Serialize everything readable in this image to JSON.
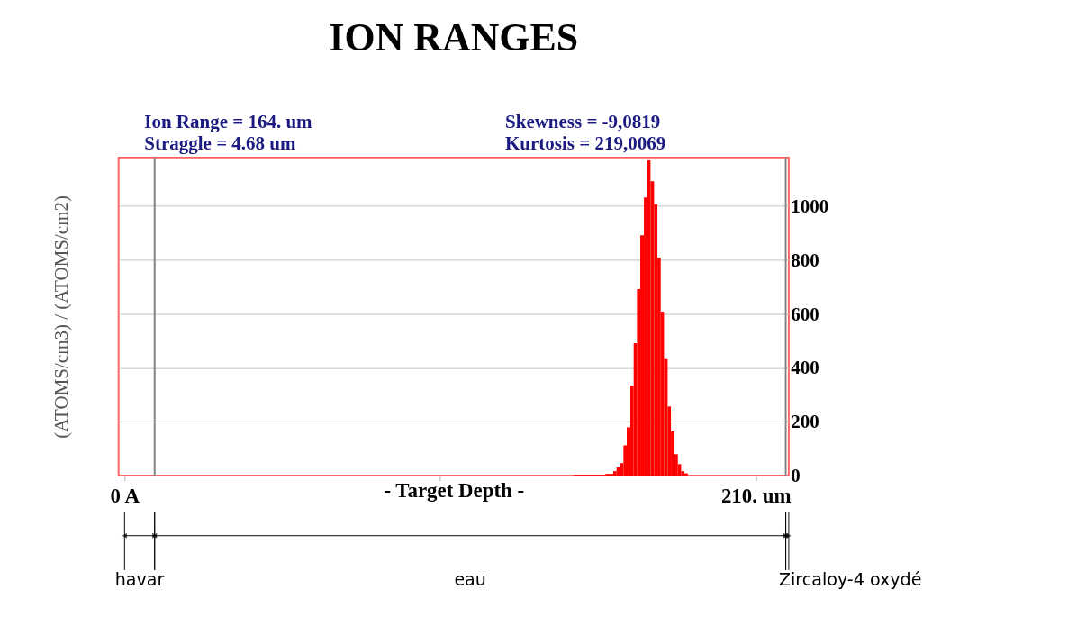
{
  "chart_data": {
    "type": "histogram",
    "title": "ION RANGES",
    "xlabel": "- Target Depth -",
    "ylabel": "(ATOMS/cm3) / (ATOMS/cm2)",
    "annotations": [
      "Ion Range    =  164. um",
      "Straggle      =  4.68 um",
      "Skewness     = -9,0819",
      "Kurtosis       = 219,0069",
      "havar",
      "eau",
      "Zircaloy-4 oxydé"
    ],
    "bins": [
      149.3,
      160.0,
      162.6,
      163.7,
      164.9,
      166.0,
      167.1,
      168.3,
      169.4,
      170.5,
      171.6,
      172.8,
      173.9,
      175.0,
      176.2,
      177.3,
      178.4,
      179.5,
      180.7,
      181.8,
      182.9,
      184.1,
      185.2,
      186.3,
      187.4
    ],
    "values": [
      2,
      6,
      16,
      30,
      46,
      112,
      179,
      334,
      491,
      692,
      891,
      1032,
      1170,
      1092,
      1007,
      809,
      608,
      432,
      256,
      164,
      79,
      42,
      16,
      8
    ],
    "color": "#ff0000",
    "xlim": [
      -2,
      221
    ],
    "xticks": [
      {
        "value": 0,
        "label": "0 A"
      },
      {
        "value": 105,
        "label": null
      },
      {
        "value": 210,
        "label": "210. um"
      }
    ],
    "ylim": [
      0,
      1180
    ],
    "yticks": [
      0,
      200,
      400,
      600,
      800,
      1000
    ],
    "grid": "y",
    "ref_lines": [
      {
        "axis": "x",
        "value": 10,
        "color": "#808080"
      },
      {
        "axis": "x",
        "value": 220,
        "color": "#808080"
      }
    ]
  }
}
